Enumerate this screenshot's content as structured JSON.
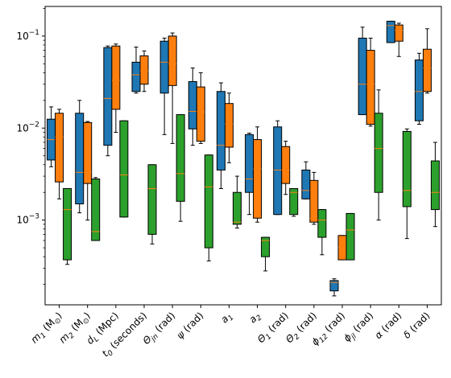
{
  "chart_data": {
    "type": "boxplot",
    "yscale": "log",
    "ylim": [
      0.00012,
      0.21
    ],
    "y_ticks": [
      {
        "value": 0.001,
        "base": "10",
        "exp": "−3"
      },
      {
        "value": 0.01,
        "base": "10",
        "exp": "−2"
      },
      {
        "value": 0.1,
        "base": "10",
        "exp": "−1"
      }
    ],
    "categories": [
      {
        "text": "m",
        "sub": "1",
        "rest": " (M",
        "sub2": "⊙",
        "rest2": ")"
      },
      {
        "text": "m",
        "sub": "2",
        "rest": " (M",
        "sub2": "⊙",
        "rest2": ")"
      },
      {
        "text": "d",
        "sub": "L",
        "rest": " (Mpc)",
        "sub2": "",
        "rest2": ""
      },
      {
        "text": "t",
        "sub": "0",
        "rest": " (seconds)",
        "sub2": "",
        "rest2": ""
      },
      {
        "text": "Θ",
        "sub": "jn",
        "rest": " (rad)",
        "sub2": "",
        "rest2": ""
      },
      {
        "text": "ψ",
        "sub": "",
        "rest": " (rad)",
        "sub2": "",
        "rest2": ""
      },
      {
        "text": "a",
        "sub": "1",
        "rest": "",
        "sub2": "",
        "rest2": ""
      },
      {
        "text": "a",
        "sub": "2",
        "rest": "",
        "sub2": "",
        "rest2": ""
      },
      {
        "text": "Θ",
        "sub": "1",
        "rest": " (rad)",
        "sub2": "",
        "rest2": ""
      },
      {
        "text": "Θ",
        "sub": "2",
        "rest": " (rad)",
        "sub2": "",
        "rest2": ""
      },
      {
        "text": "ϕ",
        "sub": "12",
        "rest": " (rad)",
        "sub2": "",
        "rest2": ""
      },
      {
        "text": "ϕ",
        "sub": "jl",
        "rest": " (rad)",
        "sub2": "",
        "rest2": ""
      },
      {
        "text": "α",
        "sub": "",
        "rest": " (rad)",
        "sub2": "",
        "rest2": ""
      },
      {
        "text": "δ",
        "sub": "",
        "rest": " (rad)",
        "sub2": "",
        "rest2": ""
      }
    ],
    "colors": [
      "#1f77b4",
      "#ff7f0e",
      "#2ca02c"
    ],
    "median_color": "#ff7f0e",
    "grid": false,
    "series": [
      {
        "boxes": [
          {
            "min": 0.0038,
            "q1": 0.0045,
            "median": 0.0075,
            "q3": 0.0125,
            "max": 0.017
          },
          {
            "min": 0.0012,
            "q1": 0.0015,
            "median": 0.0033,
            "q3": 0.0145,
            "max": 0.02
          },
          {
            "min": 0.005,
            "q1": 0.0065,
            "median": 0.021,
            "q3": 0.075,
            "max": 0.078
          },
          {
            "min": 0.024,
            "q1": 0.025,
            "median": 0.038,
            "q3": 0.052,
            "max": 0.076
          },
          {
            "min": 0.0085,
            "q1": 0.024,
            "median": 0.052,
            "q3": 0.088,
            "max": 0.095
          },
          {
            "min": 0.0065,
            "q1": 0.0098,
            "median": 0.0152,
            "q3": 0.032,
            "max": 0.045
          },
          {
            "min": 0.0022,
            "q1": 0.0035,
            "median": 0.0065,
            "q3": 0.025,
            "max": 0.031
          },
          {
            "min": 0.00115,
            "q1": 0.002,
            "median": 0.0028,
            "q3": 0.0085,
            "max": 0.0088
          },
          {
            "min": 0.00115,
            "q1": 0.00115,
            "median": 0.0035,
            "q3": 0.0103,
            "max": 0.012
          },
          {
            "min": 0.0017,
            "q1": 0.0017,
            "median": 0.0021,
            "q3": 0.0035,
            "max": 0.0043
          },
          {
            "min": 0.00015,
            "q1": 0.00017,
            "median": 0.00021,
            "q3": 0.00022,
            "max": 0.00023
          },
          {
            "min": 0.014,
            "q1": 0.014,
            "median": 0.03,
            "q3": 0.095,
            "max": 0.125
          },
          {
            "min": 0.085,
            "q1": 0.085,
            "median": 0.13,
            "q3": 0.145,
            "max": 0.145
          },
          {
            "min": 0.011,
            "q1": 0.012,
            "median": 0.025,
            "q3": 0.055,
            "max": 0.065
          }
        ]
      },
      {
        "boxes": [
          {
            "min": 0.0017,
            "q1": 0.0026,
            "median": 0.008,
            "q3": 0.0145,
            "max": 0.016
          },
          {
            "min": 0.001,
            "q1": 0.0025,
            "median": 0.0033,
            "q3": 0.0115,
            "max": 0.0118
          },
          {
            "min": 0.009,
            "q1": 0.016,
            "median": 0.033,
            "q3": 0.078,
            "max": 0.082
          },
          {
            "min": 0.025,
            "q1": 0.03,
            "median": 0.042,
            "q3": 0.061,
            "max": 0.069
          },
          {
            "min": 0.0068,
            "q1": 0.029,
            "median": 0.05,
            "q3": 0.1,
            "max": 0.108
          },
          {
            "min": 0.0068,
            "q1": 0.0072,
            "median": 0.015,
            "q3": 0.028,
            "max": 0.04
          },
          {
            "min": 0.0042,
            "q1": 0.0062,
            "median": 0.011,
            "q3": 0.0185,
            "max": 0.024
          },
          {
            "min": 0.00095,
            "q1": 0.00105,
            "median": 0.0036,
            "q3": 0.0075,
            "max": 0.0103
          },
          {
            "min": 0.0019,
            "q1": 0.0025,
            "median": 0.0035,
            "q3": 0.0063,
            "max": 0.0072
          },
          {
            "min": 0.0009,
            "q1": 0.00095,
            "median": 0.00105,
            "q3": 0.0027,
            "max": 0.0033
          },
          {
            "min": 0.00037,
            "q1": 0.00037,
            "median": 0.0005,
            "q3": 0.00068,
            "max": 0.00068
          },
          {
            "min": 0.0105,
            "q1": 0.011,
            "median": 0.03,
            "q3": 0.07,
            "max": 0.095
          },
          {
            "min": 0.06,
            "q1": 0.088,
            "median": 0.115,
            "q3": 0.132,
            "max": 0.138
          },
          {
            "min": 0.024,
            "q1": 0.025,
            "median": 0.045,
            "q3": 0.072,
            "max": 0.12
          }
        ]
      },
      {
        "boxes": [
          {
            "min": 0.00033,
            "q1": 0.00037,
            "median": 0.0013,
            "q3": 0.0022,
            "max": 0.0022
          },
          {
            "min": 0.0006,
            "q1": 0.0006,
            "median": 0.00075,
            "q3": 0.0028,
            "max": 0.0029
          },
          {
            "min": 0.00108,
            "q1": 0.00108,
            "median": 0.0031,
            "q3": 0.012,
            "max": 0.012
          },
          {
            "min": 0.00055,
            "q1": 0.0007,
            "median": 0.0022,
            "q3": 0.004,
            "max": 0.004
          },
          {
            "min": 0.00097,
            "q1": 0.0016,
            "median": 0.0032,
            "q3": 0.014,
            "max": 0.014
          },
          {
            "min": 0.00036,
            "q1": 0.0005,
            "median": 0.0023,
            "q3": 0.0051,
            "max": 0.0051
          },
          {
            "min": 0.00082,
            "q1": 0.0009,
            "median": 0.00095,
            "q3": 0.002,
            "max": 0.003
          },
          {
            "min": 0.00028,
            "q1": 0.0004,
            "median": 0.0006,
            "q3": 0.00065,
            "max": 0.00065
          },
          {
            "min": 0.0011,
            "q1": 0.00115,
            "median": 0.002,
            "q3": 0.0022,
            "max": 0.0022
          },
          {
            "min": 0.00042,
            "q1": 0.00065,
            "median": 0.001,
            "q3": 0.0013,
            "max": 0.0013
          },
          {
            "min": 0.00037,
            "q1": 0.00037,
            "median": 0.00078,
            "q3": 0.00118,
            "max": 0.00118
          },
          {
            "min": 0.001,
            "q1": 0.002,
            "median": 0.006,
            "q3": 0.0145,
            "max": 0.026
          },
          {
            "min": 0.00063,
            "q1": 0.0014,
            "median": 0.0021,
            "q3": 0.0092,
            "max": 0.0098
          },
          {
            "min": 0.00085,
            "q1": 0.0013,
            "median": 0.002,
            "q3": 0.0044,
            "max": 0.007
          }
        ]
      }
    ]
  }
}
